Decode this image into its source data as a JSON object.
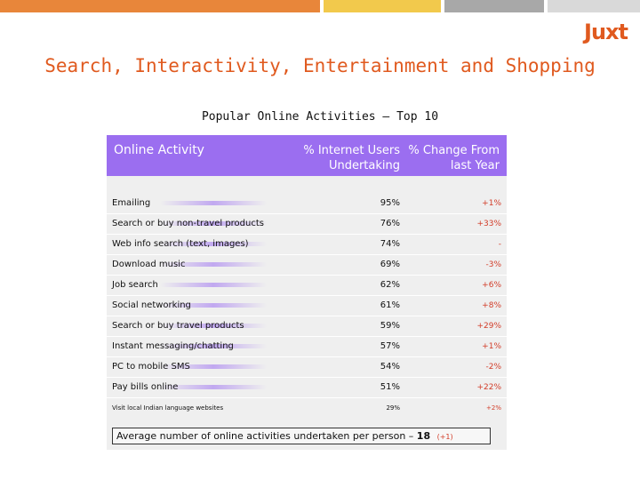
{
  "brand": {
    "logo": "Juxt"
  },
  "slide_title": "Search, Interactivity, Entertainment and Shopping",
  "table_title": "Popular Online Activities – Top 10",
  "headers": {
    "activity": "Online Activity",
    "users_line1": "% Internet Users",
    "users_line2": "Undertaking",
    "change_line1": "% Change From",
    "change_line2": "last Year"
  },
  "rows": [
    {
      "name": "Emailing",
      "users": "95%",
      "change": "+1%"
    },
    {
      "name": "Search or buy non-travel products",
      "users": "76%",
      "change": "+33%"
    },
    {
      "name": "Web info search (text, images)",
      "users": "74%",
      "change": "-"
    },
    {
      "name": "Download music",
      "users": "69%",
      "change": "-3%"
    },
    {
      "name": "Job search",
      "users": "62%",
      "change": "+6%"
    },
    {
      "name": "Social networking",
      "users": "61%",
      "change": "+8%"
    },
    {
      "name": "Search or buy travel products",
      "users": "59%",
      "change": "+29%"
    },
    {
      "name": "Instant messaging/chatting",
      "users": "57%",
      "change": "+1%"
    },
    {
      "name": "PC to mobile SMS",
      "users": "54%",
      "change": "-2%"
    },
    {
      "name": "Pay bills online",
      "users": "51%",
      "change": "+22%"
    }
  ],
  "extra_row": {
    "name": "Visit local Indian language websites",
    "users": "29%",
    "change": "+2%"
  },
  "average": {
    "text": "Average number of online activities undertaken per person –",
    "value": "18",
    "delta": "(+1)"
  },
  "colors": {
    "accent_orange": "#e05a1f",
    "header_purple": "#9b6ef0",
    "change_red": "#d23c28",
    "topbar": [
      "#e8863a",
      "#f2c94c",
      "#f5de8a",
      "#a8a8a8",
      "#d9d9d9"
    ]
  }
}
